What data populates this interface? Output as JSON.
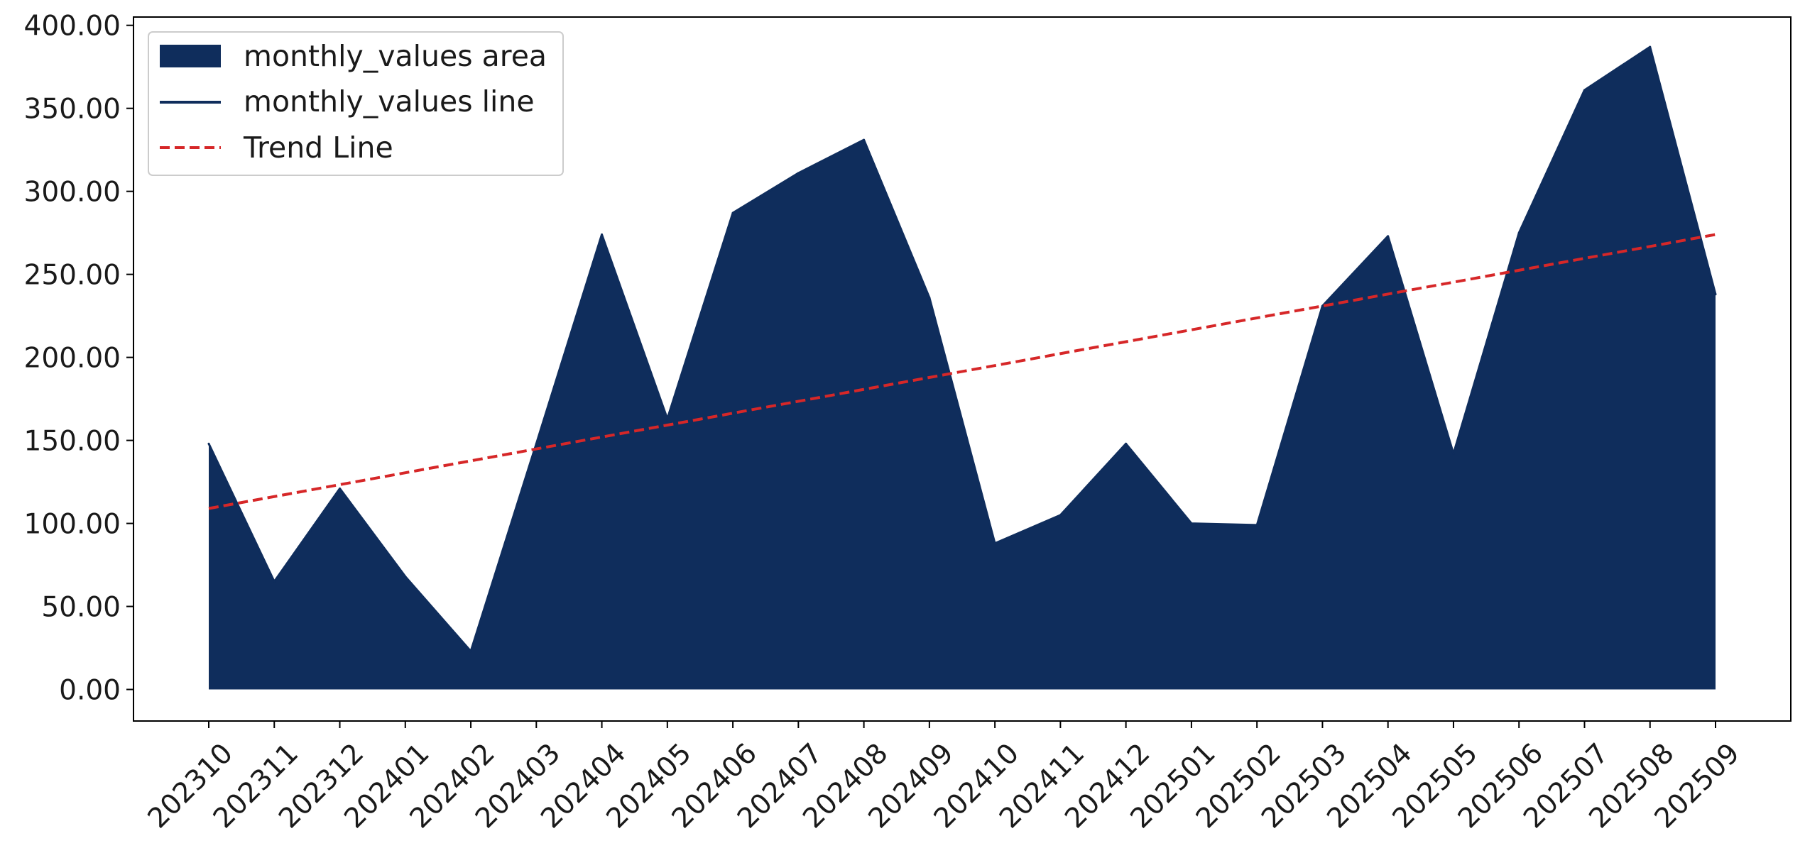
{
  "chart_data": {
    "type": "area",
    "title": "",
    "xlabel": "",
    "ylabel": "",
    "categories": [
      "202310",
      "202311",
      "202312",
      "202401",
      "202402",
      "202403",
      "202404",
      "202405",
      "202406",
      "202407",
      "202408",
      "202409",
      "202410",
      "202411",
      "202412",
      "202501",
      "202502",
      "202503",
      "202504",
      "202505",
      "202506",
      "202507",
      "202508",
      "202509"
    ],
    "series": [
      {
        "name": "monthly_values",
        "legend_area": "monthly_values area",
        "legend_line": "monthly_values line",
        "color": "#0f2d5c",
        "values": [
          148,
          65,
          121,
          68,
          23,
          148,
          274,
          163,
          287,
          311,
          331,
          236,
          88,
          105,
          148,
          100,
          99,
          231,
          273,
          142,
          275,
          361,
          387,
          238
        ]
      }
    ],
    "trend": {
      "name": "Trend Line",
      "color": "#d62728",
      "start": 109,
      "end": 274
    },
    "ylim": [
      -19,
      405
    ],
    "yticks": [
      "0.00",
      "50.00",
      "100.00",
      "150.00",
      "200.00",
      "250.00",
      "300.00",
      "350.00",
      "400.00"
    ],
    "ytick_values": [
      0,
      50,
      100,
      150,
      200,
      250,
      300,
      350,
      400
    ],
    "grid": false,
    "legend_position": "upper left"
  }
}
